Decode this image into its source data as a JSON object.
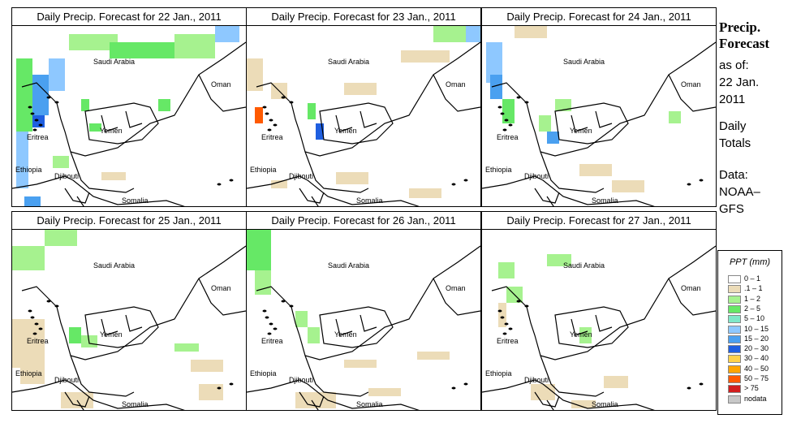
{
  "panels": [
    {
      "title": "Daily Precip. Forecast for  22 Jan., 2011"
    },
    {
      "title": "Daily Precip. Forecast for  23 Jan., 2011"
    },
    {
      "title": "Daily Precip. Forecast for  24 Jan., 2011"
    },
    {
      "title": "Daily Precip. Forecast for  25 Jan., 2011"
    },
    {
      "title": "Daily Precip. Forecast for  26 Jan., 2011"
    },
    {
      "title": "Daily Precip. Forecast for  27 Jan., 2011"
    }
  ],
  "map_labels": {
    "saudi": "Saudi Arabia",
    "oman": "Oman",
    "yemen": "Yemen",
    "eritrea": "Eritrea",
    "ethiopia": "Ethiopia",
    "djibouti": "Djibouti",
    "somalia": "Somalia"
  },
  "sidebar": {
    "title_line1": "Precip.",
    "title_line2": "Forecast",
    "asof_line1": "as of:",
    "asof_line2": "22 Jan.",
    "asof_line3": "2011",
    "daily_line1": "Daily",
    "daily_line2": "Totals",
    "data_line1": "Data:",
    "data_line2": "NOAA–",
    "data_line3": "GFS"
  },
  "legend": {
    "title": "PPT (mm)",
    "items": [
      {
        "label": "0 – 1",
        "color": "#ffffff"
      },
      {
        "label": ".1 – 1",
        "color": "#ecdcb8"
      },
      {
        "label": "1 – 2",
        "color": "#a6f28f"
      },
      {
        "label": "2 – 5",
        "color": "#66e866"
      },
      {
        "label": "5 – 10",
        "color": "#7fe8c8"
      },
      {
        "label": "10 – 15",
        "color": "#8ec8ff"
      },
      {
        "label": "15 – 20",
        "color": "#4aa0f0"
      },
      {
        "label": "20 – 30",
        "color": "#1f5fe0"
      },
      {
        "label": "30 – 40",
        "color": "#ffd24a"
      },
      {
        "label": "40 – 50",
        "color": "#ffa500"
      },
      {
        "label": "50 – 75",
        "color": "#ff5a00"
      },
      {
        "label": "> 75",
        "color": "#d21e1e"
      },
      {
        "label": "nodata",
        "color": "#c8c8c8"
      }
    ]
  }
}
